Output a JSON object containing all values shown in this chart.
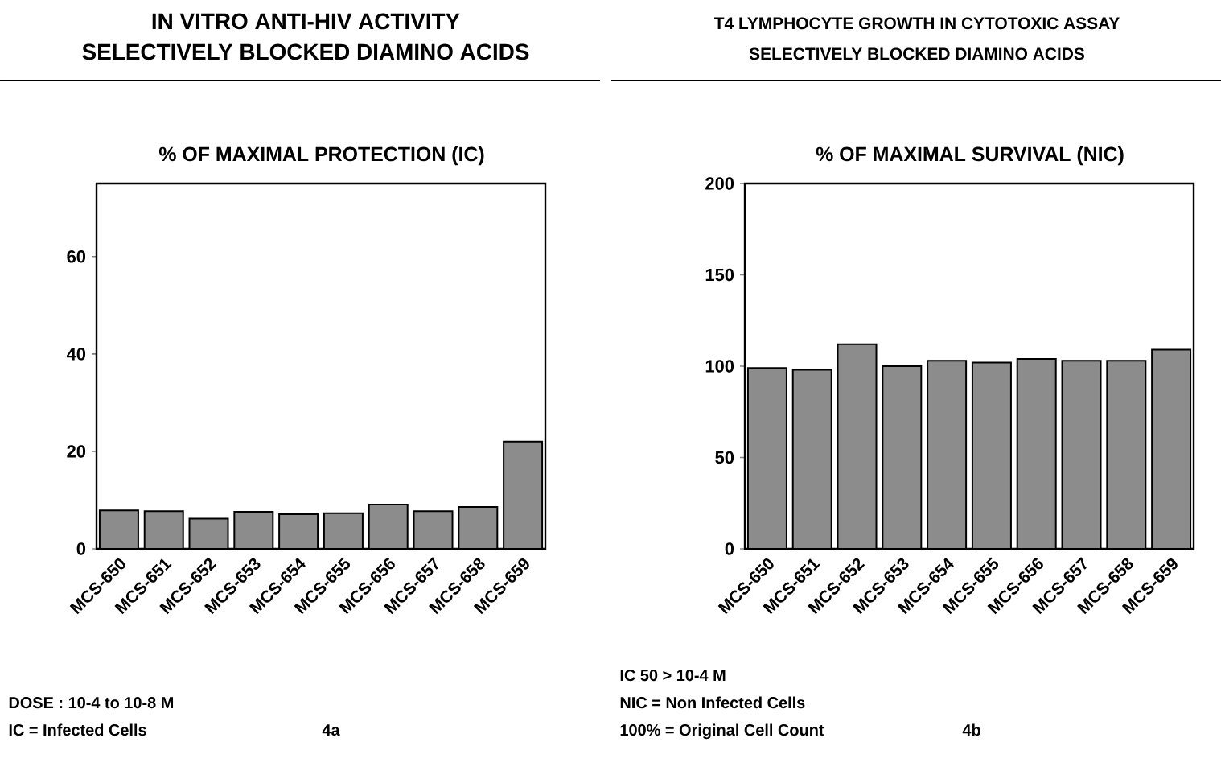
{
  "chart_data": [
    {
      "type": "bar",
      "title": "IN VITRO ANTI-HIV ACTIVITY",
      "subtitle": "SELECTIVELY BLOCKED DIAMINO ACIDS",
      "ylabel": "% OF MAXIMAL PROTECTION (IC)",
      "categories": [
        "MCS-650",
        "MCS-651",
        "MCS-652",
        "MCS-653",
        "MCS-654",
        "MCS-655",
        "MCS-656",
        "MCS-657",
        "MCS-658",
        "MCS-659"
      ],
      "values": [
        7.9,
        7.7,
        6.2,
        7.6,
        7.1,
        7.3,
        9.1,
        7.7,
        8.6,
        22
      ],
      "color": "#8c8c8c",
      "ylim": [
        0,
        75
      ],
      "yticks": [
        0,
        20,
        40,
        60
      ],
      "annotations": [
        "DOSE : 10-4 to 10-8 M",
        "IC = Infected Cells",
        "4a"
      ]
    },
    {
      "type": "bar",
      "title": "T4 LYMPHOCYTE GROWTH IN CYTOTOXIC ASSAY",
      "subtitle": "SELECTIVELY BLOCKED DIAMINO ACIDS",
      "ylabel": "% OF MAXIMAL SURVIVAL (NIC)",
      "categories": [
        "MCS-650",
        "MCS-651",
        "MCS-652",
        "MCS-653",
        "MCS-654",
        "MCS-655",
        "MCS-656",
        "MCS-657",
        "MCS-658",
        "MCS-659"
      ],
      "values": [
        99,
        98,
        112,
        100,
        103,
        102,
        104,
        103,
        103,
        109
      ],
      "color": "#8c8c8c",
      "ylim": [
        0,
        200
      ],
      "yticks": [
        0,
        50,
        100,
        150,
        200
      ],
      "annotations": [
        "IC 50 > 10-4 M",
        "NIC = Non Infected Cells",
        "100% = Original Cell Count",
        "4b"
      ]
    }
  ]
}
